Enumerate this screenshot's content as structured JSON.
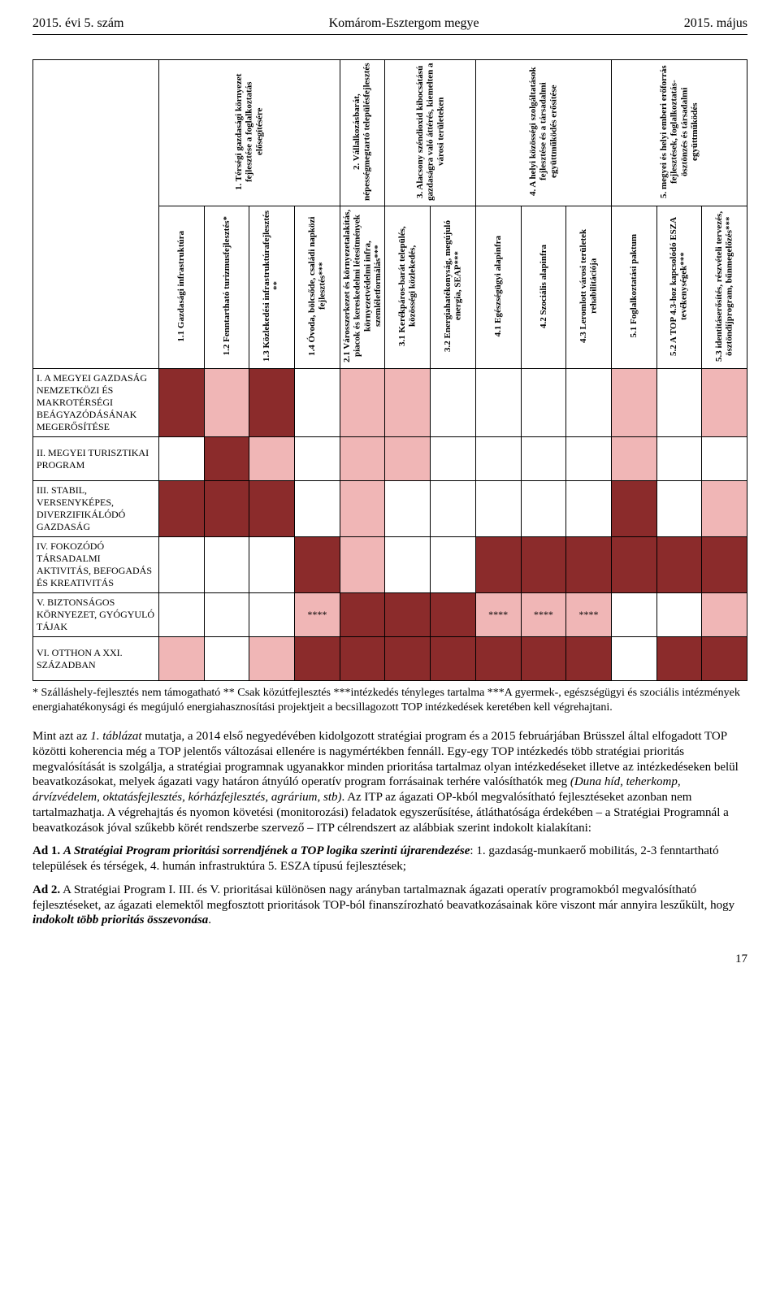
{
  "colors": {
    "dark_cell": "#8b2b2b",
    "light_cell": "#f0b6b6",
    "border": "#000000",
    "background": "#ffffff",
    "text": "#000000"
  },
  "header": {
    "left": "2015. évi 5. szám",
    "center": "Komárom-Esztergom megye",
    "right": "2015. május"
  },
  "topHeaders": [
    {
      "label": "1. Térségi gazdasági környezet fejlesztése a foglalkoztatás elősegítésére",
      "span": 4
    },
    {
      "label": "2. Vállalkozásbarát, népességmegtartó településfejlesztés",
      "span": 1
    },
    {
      "label": "3. Alacsony széndioxid kibocsátású gazdaságra való áttérés, kiemelten a városi területeken",
      "span": 2
    },
    {
      "label": "4. A helyi közösségi szolgáltatások fejlesztése és a társadalmi együttműködés erősítése",
      "span": 3
    },
    {
      "label": "5. megyei és helyi emberi erőforrás fejlesztések, foglalkoztatás-ösztönzés és társadalmi együttműködés",
      "span": 3
    }
  ],
  "subHeaders": [
    "1.1 Gazdasági infrastruktúra",
    "1.2 Fenntartható turizmusfejlesztés*",
    "1.3 Közlekedési infrastruktúrafejlesztés **",
    "1.4 Óvoda, bölcsőde, családi napközi fejlesztés***",
    "2.1 Városszerkezet és környezetalakítás, piacok és kereskedelmi létesítmények környezetvédelmi infra, szemléletformálás***",
    "3.1 Kerékpáros-barát település, közösségi közlekedés,",
    "3.2 Energiahatékonyság, megújuló energia, SEAP***",
    "4.1 Egészségügyi alapinfra",
    "4.2 Szociális alapinfra",
    "4.3 Leromlott városi területek rehabilitációja",
    "5.1 Foglalkoztatási paktum",
    "5.2 A TOP 4.3-hoz kapcsolódó ESZA tevékenységek***",
    "5.3 identitáserősítés, részvételi tervezés, ösztöndíjprogram, bűnmegelőzés***"
  ],
  "rows": [
    {
      "label": "I. A MEGYEI GAZDASÁG NEMZETKÖZI ÉS MAKROTÉRSÉGI BEÁGYAZÓDÁSÁNAK MEGERŐSÍTÉSE",
      "cells": [
        "D",
        "L",
        "D",
        "",
        "L",
        "L",
        "",
        "",
        "",
        "",
        "L",
        "",
        "L"
      ]
    },
    {
      "label": "II. MEGYEI TURISZTIKAI PROGRAM",
      "cells": [
        "",
        "D",
        "L",
        "",
        "L",
        "L",
        "",
        "",
        "",
        "",
        "L",
        "",
        ""
      ]
    },
    {
      "label": "III. STABIL, VERSENYKÉPES, DIVERZIFIKÁLÓDÓ GAZDASÁG",
      "cells": [
        "D",
        "D",
        "D",
        "",
        "L",
        "",
        "",
        "",
        "",
        "",
        "D",
        "",
        "L"
      ]
    },
    {
      "label": "IV. FOKOZÓDÓ TÁRSADALMI AKTIVITÁS, BEFOGADÁS ÉS KREATIVITÁS",
      "cells": [
        "",
        "",
        "",
        "D",
        "L",
        "",
        "",
        "D",
        "D",
        "D",
        "D",
        "D",
        "D"
      ]
    },
    {
      "label": "V. BIZTONSÁGOS KÖRNYEZET, GYÓGYULÓ TÁJAK",
      "cells": [
        "",
        "",
        "",
        "****",
        "D",
        "D",
        "D",
        "****",
        "****",
        "****",
        "",
        "",
        "L"
      ]
    },
    {
      "label": "VI. OTTHON A XXI. SZÁZADBAN",
      "cells": [
        "L",
        "",
        "L",
        "D",
        "D",
        "D",
        "D",
        "D",
        "D",
        "D",
        "",
        "D",
        "D"
      ]
    }
  ],
  "footnote": "* Szálláshely-fejlesztés nem támogatható ** Csak közútfejlesztés ***intézkedés tényleges tartalma ***A gyermek-, egészségügyi és szociális intézmények energiahatékonysági és megújuló energiahasznosítási projektjeit a becsillagozott TOP intézkedések keretében kell végrehajtani.",
  "bodyParagraphs": [
    {
      "html": "Mint azt az <em>1. táblázat</em> mutatja, a 2014 első negyedévében kidolgozott stratégiai program és a 2015 februárjában Brüsszel által elfogadott TOP közötti koherencia még a TOP jelentős változásai ellenére is nagymértékben fennáll. Egy-egy TOP intézkedés több stratégiai prioritás megvalósítását is szolgálja, a stratégiai programnak ugyanakkor minden prioritása tartalmaz olyan intézkedéseket illetve az intézkedéseken belül beavatkozásokat, melyek ágazati vagy határon átnyúló operatív program forrásainak terhére valósíthatók meg <em>(Duna híd, teherkomp, árvízvédelem, oktatásfejlesztés, kórházfejlesztés, agrárium, stb)</em>. Az ITP az ágazati OP-kból megvalósítható fejlesztéseket azonban nem tartalmazhatja. A végrehajtás és nyomon követési (monitorozási) feladatok egyszerűsítése, átláthatósága érdekében – a Stratégiai Programnál a beavatkozások jóval szűkebb körét rendszerbe szervező – ITP célrendszert az alábbiak szerint indokolt kialakítani:"
    },
    {
      "html": "<strong>Ad 1.</strong> <em><strong>A Stratégiai Program prioritási sorrendjének a TOP logika szerinti újrarendezése</strong></em>: 1. gazdaság-munkaerő mobilitás, 2-3 fenntartható települések és térségek, 4. humán infrastruktúra 5. ESZA típusú fejlesztések;"
    },
    {
      "html": "<strong>Ad 2.</strong> A Stratégiai Program I. III. és V. prioritásai különösen nagy arányban tartalmaznak ágazati operatív programokból megvalósítható fejlesztéseket, az ágazati elemektől megfosztott prioritások TOP-ból finanszírozható beavatkozásainak köre viszont már annyira leszűkült, hogy <em><strong>indokolt több prioritás összevonása</strong></em>."
    }
  ],
  "pageNumber": "17"
}
